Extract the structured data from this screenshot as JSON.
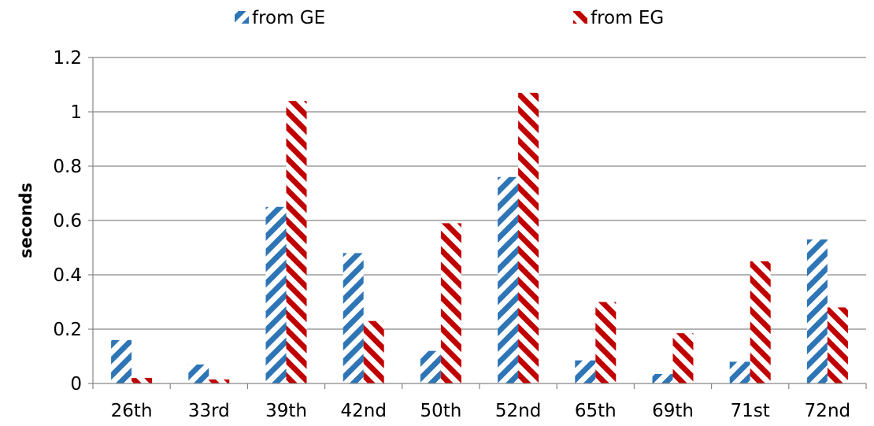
{
  "chart_data": {
    "type": "bar",
    "categories": [
      "26th",
      "33rd",
      "39th",
      "42nd",
      "50th",
      "52nd",
      "65th",
      "69th",
      "71st",
      "72nd"
    ],
    "series": [
      {
        "name": "from GE",
        "color": "#2E75B6",
        "pattern": "diagonal-up-stripes",
        "values": [
          0.16,
          0.07,
          0.65,
          0.48,
          0.12,
          0.76,
          0.085,
          0.035,
          0.08,
          0.53
        ]
      },
      {
        "name": "from EG",
        "color": "#C00000",
        "pattern": "diagonal-down-stripes",
        "values": [
          0.02,
          0.015,
          1.04,
          0.23,
          0.59,
          1.07,
          0.3,
          0.185,
          0.45,
          0.28
        ]
      }
    ],
    "title": "",
    "xlabel": "",
    "ylabel": "seconds",
    "ylim": [
      0,
      1.2
    ],
    "yticks": [
      "0",
      "0.2",
      "0.4",
      "0.6",
      "0.8",
      "1",
      "1.2"
    ],
    "grid": "horizontal",
    "legend": "top"
  }
}
